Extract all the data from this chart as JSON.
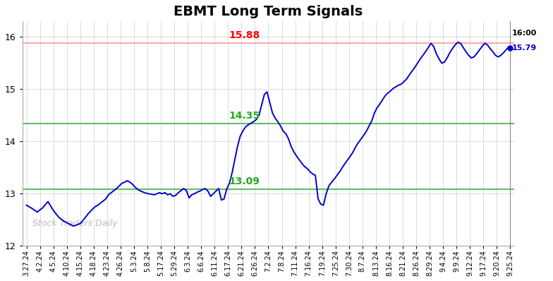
{
  "title": "EBMT Long Term Signals",
  "ylim": [
    12,
    16.3
  ],
  "yticks": [
    12,
    13,
    14,
    15,
    16
  ],
  "red_hline": 15.88,
  "green_hline1": 14.35,
  "green_hline2": 13.09,
  "last_price": 15.79,
  "last_label": "16:00",
  "watermark": "Stock Traders Daily",
  "line_color": "#0000cc",
  "title_fontsize": 14,
  "tick_fontsize": 7,
  "x_labels": [
    "3.27.24",
    "4.2.24",
    "4.5.24",
    "4.10.24",
    "4.15.24",
    "4.18.24",
    "4.23.24",
    "4.26.24",
    "5.3.24",
    "5.8.24",
    "5.17.24",
    "5.29.24",
    "6.3.24",
    "6.6.24",
    "6.11.24",
    "6.17.24",
    "6.21.24",
    "6.26.24",
    "7.2.24",
    "7.8.24",
    "7.11.24",
    "7.16.24",
    "7.19.24",
    "7.25.24",
    "7.30.24",
    "8.7.24",
    "8.13.24",
    "8.16.24",
    "8.21.24",
    "8.26.24",
    "8.29.24",
    "9.4.24",
    "9.9.24",
    "9.12.24",
    "9.17.24",
    "9.20.24",
    "9.25.24"
  ],
  "price_points_x": [
    0,
    0.4,
    0.8,
    1.2,
    1.6,
    2.0,
    2.4,
    2.8,
    3.2,
    3.5,
    4.0,
    4.3,
    4.6,
    4.9,
    5.1,
    5.3,
    5.5,
    5.7,
    5.9,
    6.1,
    6.3,
    6.5,
    6.7,
    6.9,
    7.1,
    7.3,
    7.5,
    7.7,
    7.9,
    8.1,
    8.3,
    8.5,
    8.7,
    8.9,
    9.1,
    9.3,
    9.5,
    9.7,
    9.9,
    10.1,
    10.3,
    10.5,
    10.7,
    10.9,
    11.1,
    11.3,
    11.5,
    11.7,
    11.9,
    12.1,
    12.3,
    12.5,
    12.7,
    12.9,
    13.1,
    13.3,
    13.5,
    13.7,
    13.9,
    14.1,
    14.3,
    14.5,
    14.7,
    14.9,
    15.1,
    15.3,
    15.5,
    15.7,
    15.9,
    16.1,
    16.3,
    16.5,
    16.7,
    16.9,
    17.1,
    17.3,
    17.5,
    17.7,
    17.9,
    18.1,
    18.3,
    18.5,
    18.7,
    18.9,
    19.1,
    19.3,
    19.5,
    19.7,
    19.9,
    20.1,
    20.3,
    20.5,
    20.7,
    20.9,
    21.1,
    21.3,
    21.5,
    21.7,
    21.9,
    22.1,
    22.3,
    22.5,
    22.7,
    22.9,
    23.1,
    23.3,
    23.5,
    23.7,
    23.9,
    24.1,
    24.3,
    24.5,
    24.7,
    24.9,
    25.1,
    25.3,
    25.5,
    25.7,
    25.9,
    26.1,
    26.3,
    26.5,
    26.7,
    26.9,
    27.1,
    27.3,
    27.5,
    27.7,
    27.9,
    28.1,
    28.3,
    28.5,
    28.7,
    28.9,
    29.1,
    29.3,
    29.5,
    29.7,
    29.9,
    30.1,
    30.3,
    30.5,
    30.7,
    30.9,
    31.1,
    31.3,
    31.5,
    31.7,
    31.9,
    32.1,
    32.3,
    32.5,
    32.7,
    32.9,
    33.1,
    33.3,
    33.5,
    33.7,
    33.9,
    34.1,
    34.3,
    34.5,
    34.7,
    34.9,
    35.1,
    35.3,
    35.5,
    35.7,
    35.9,
    36.0
  ],
  "price_points_y": [
    12.78,
    12.72,
    12.65,
    12.73,
    12.85,
    12.68,
    12.55,
    12.47,
    12.42,
    12.38,
    12.43,
    12.52,
    12.62,
    12.7,
    12.75,
    12.78,
    12.82,
    12.86,
    12.9,
    12.98,
    13.02,
    13.06,
    13.1,
    13.15,
    13.2,
    13.22,
    13.25,
    13.22,
    13.18,
    13.12,
    13.08,
    13.05,
    13.03,
    13.01,
    13.0,
    12.99,
    12.98,
    13.0,
    13.02,
    13.0,
    13.02,
    12.98,
    13.0,
    12.95,
    12.97,
    13.02,
    13.06,
    13.1,
    13.06,
    12.92,
    12.98,
    13.0,
    13.03,
    13.05,
    13.08,
    13.1,
    13.05,
    12.95,
    13.0,
    13.05,
    13.1,
    12.88,
    12.9,
    13.09,
    13.2,
    13.4,
    13.65,
    13.9,
    14.1,
    14.2,
    14.28,
    14.32,
    14.35,
    14.38,
    14.42,
    14.5,
    14.7,
    14.9,
    14.95,
    14.75,
    14.55,
    14.45,
    14.38,
    14.3,
    14.2,
    14.15,
    14.05,
    13.9,
    13.8,
    13.72,
    13.65,
    13.58,
    13.52,
    13.48,
    13.42,
    13.38,
    13.35,
    12.9,
    12.8,
    12.78,
    13.0,
    13.15,
    13.22,
    13.28,
    13.35,
    13.42,
    13.5,
    13.58,
    13.65,
    13.72,
    13.8,
    13.9,
    13.98,
    14.05,
    14.12,
    14.2,
    14.3,
    14.4,
    14.55,
    14.65,
    14.72,
    14.8,
    14.88,
    14.93,
    14.97,
    15.02,
    15.05,
    15.08,
    15.1,
    15.15,
    15.2,
    15.28,
    15.35,
    15.42,
    15.5,
    15.58,
    15.65,
    15.72,
    15.8,
    15.88,
    15.82,
    15.68,
    15.58,
    15.5,
    15.52,
    15.6,
    15.7,
    15.78,
    15.85,
    15.9,
    15.88,
    15.8,
    15.72,
    15.65,
    15.6,
    15.62,
    15.68,
    15.75,
    15.82,
    15.88,
    15.85,
    15.78,
    15.72,
    15.65,
    15.62,
    15.65,
    15.7,
    15.76,
    15.82,
    15.79
  ]
}
